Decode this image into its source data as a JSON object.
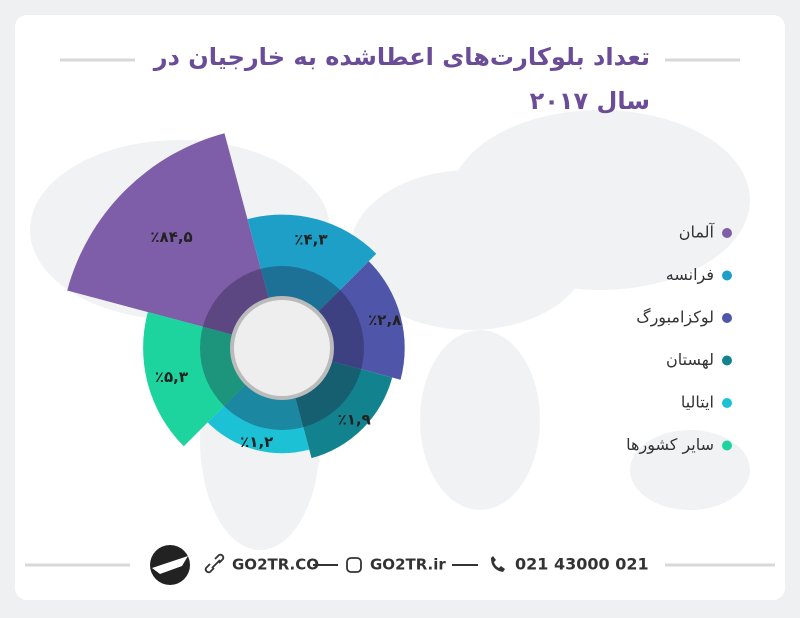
{
  "chart_data": {
    "type": "polar-area",
    "title": "تعداد بلوکارت‌های اعطاشده به خارجیان در سال ۲۰۱۷",
    "categories": [
      "آلمان",
      "فرانسه",
      "لوکزامبورگ",
      "لهستان",
      "ایتالیا",
      "سایر کشورها"
    ],
    "values": [
      84.5,
      4.3,
      2.8,
      1.9,
      1.2,
      5.3
    ],
    "value_labels": [
      "٪۸۴,۵",
      "٪۴,۳",
      "٪۲,۸",
      "٪۱,۹",
      "٪۱,۲",
      "٪۵,۳"
    ],
    "colors": [
      "#7e5ea8",
      "#1e9fc8",
      "#4f55a8",
      "#12838e",
      "#1cc1d6",
      "#1ed49e"
    ],
    "legend": "right"
  },
  "footer": {
    "site": "GO2TR.CO",
    "instagram": "GO2TR.ir",
    "phone": "021 43000 021"
  }
}
